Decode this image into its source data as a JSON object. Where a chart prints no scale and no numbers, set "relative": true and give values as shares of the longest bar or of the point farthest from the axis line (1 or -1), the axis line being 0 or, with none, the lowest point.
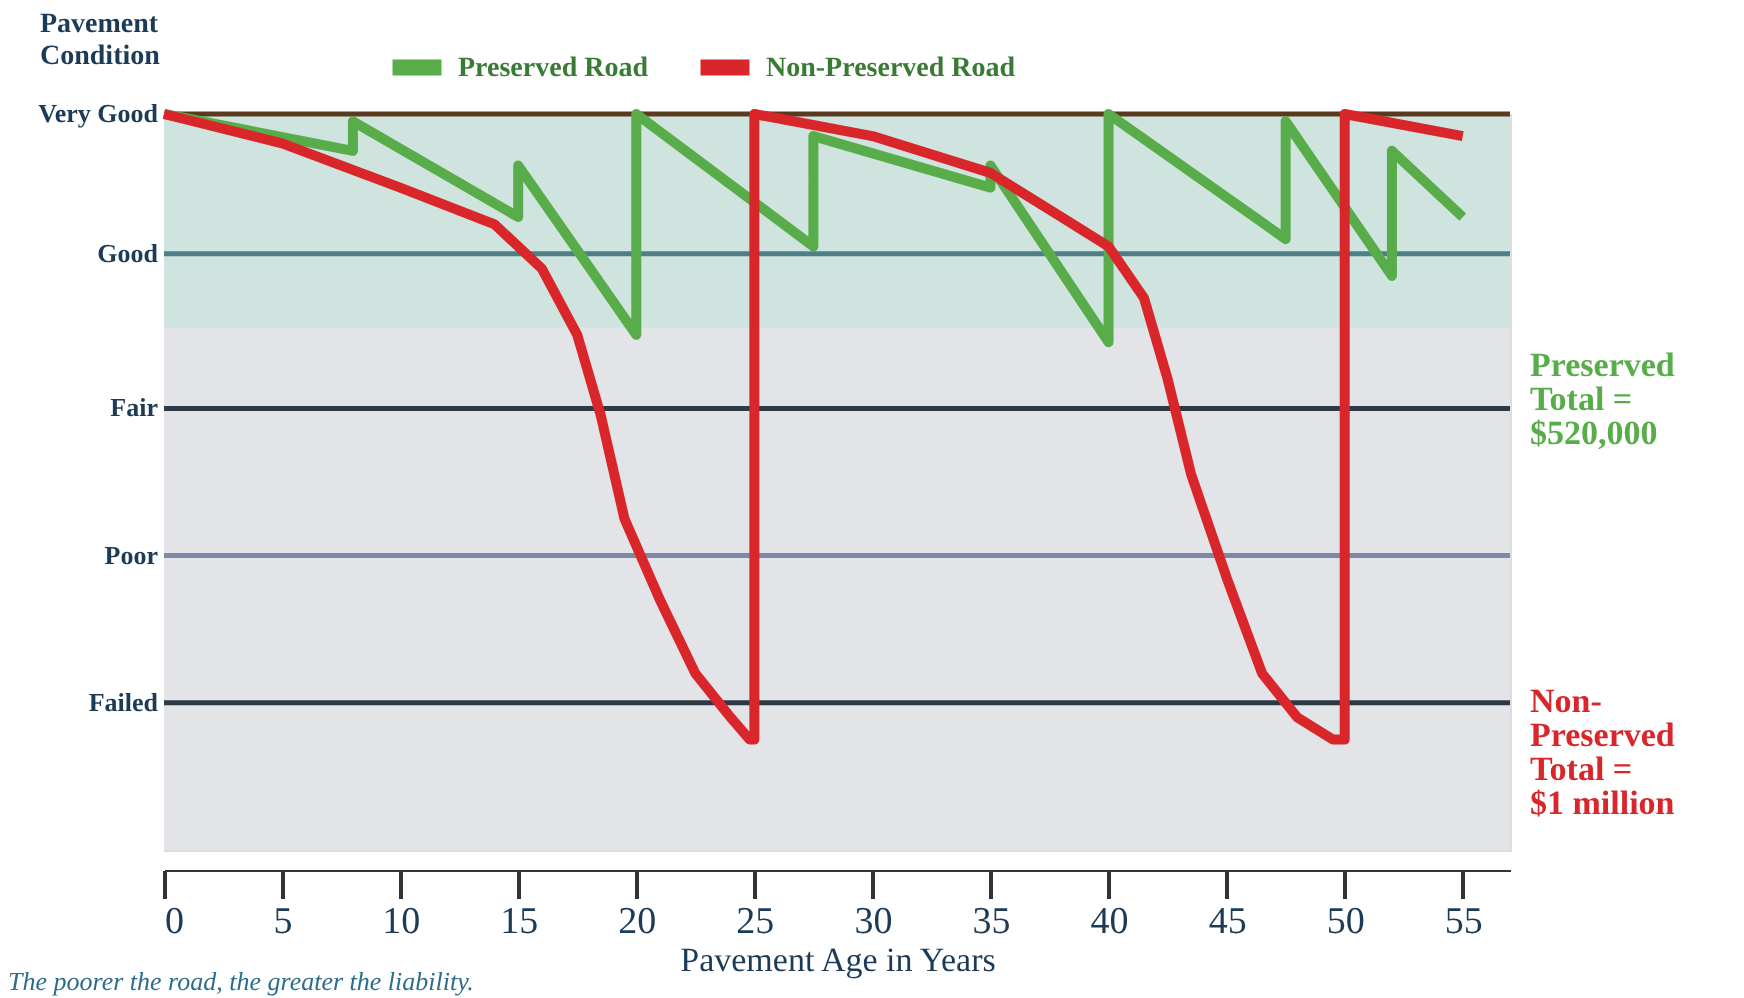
{
  "chart_data": {
    "type": "line",
    "relative": true,
    "ylabel": "Pavement Condition",
    "xlabel": "Pavement Age in Years",
    "xlim": [
      0,
      57
    ],
    "xticks": [
      0,
      5,
      10,
      15,
      20,
      25,
      30,
      35,
      40,
      45,
      50,
      55
    ],
    "legend": "top",
    "marker": "none",
    "line_style": "solid",
    "bands": [
      {
        "axis": "y",
        "from": 0.71,
        "to": 1,
        "color": "#cfe4de"
      }
    ],
    "ref_lines": [
      {
        "axis": "y",
        "value": 0.2,
        "label": "Failed",
        "color": "#2d3a45"
      },
      {
        "axis": "y",
        "value": 0.4,
        "label": "Poor",
        "color": "#8088aa"
      },
      {
        "axis": "y",
        "value": 0.6,
        "label": "Fair",
        "color": "#2d3a45"
      },
      {
        "axis": "y",
        "value": 0.81,
        "label": "Good",
        "color": "#4f7f86"
      },
      {
        "axis": "y",
        "value": 1,
        "label": "Very Good",
        "color": "#5a3a1e"
      }
    ],
    "series": [
      {
        "name": "Preserved Road",
        "color": "#58ad4a",
        "x": [
          0,
          8,
          8,
          15,
          15,
          20,
          20,
          27.5,
          27.5,
          35,
          35,
          40,
          40,
          47.5,
          47.5,
          52,
          52,
          55
        ],
        "values": [
          1,
          0.95,
          0.99,
          0.86,
          0.93,
          0.7,
          1,
          0.82,
          0.97,
          0.9,
          0.93,
          0.69,
          1,
          0.83,
          0.99,
          0.78,
          0.95,
          0.86
        ]
      },
      {
        "name": "Non-Preserved Road",
        "color": "#d9262b",
        "x": [
          0,
          5,
          10,
          14,
          16,
          17.5,
          18.5,
          19.5,
          21,
          22.5,
          24,
          24.8,
          25,
          25,
          30,
          35,
          38,
          40,
          41.5,
          42.5,
          43.5,
          45,
          46.5,
          48,
          49.5,
          50,
          50,
          55
        ],
        "values": [
          1,
          0.96,
          0.9,
          0.85,
          0.79,
          0.7,
          0.59,
          0.45,
          0.34,
          0.24,
          0.18,
          0.15,
          0.15,
          1,
          0.97,
          0.92,
          0.86,
          0.82,
          0.75,
          0.64,
          0.51,
          0.37,
          0.24,
          0.18,
          0.15,
          0.15,
          1,
          0.97
        ]
      }
    ],
    "annotations": [
      "Preserved\nTotal =\n$520,000",
      "Non-\nPreserved\nTotal =\n $1 million",
      "The poorer the road, the greater the liability."
    ]
  }
}
